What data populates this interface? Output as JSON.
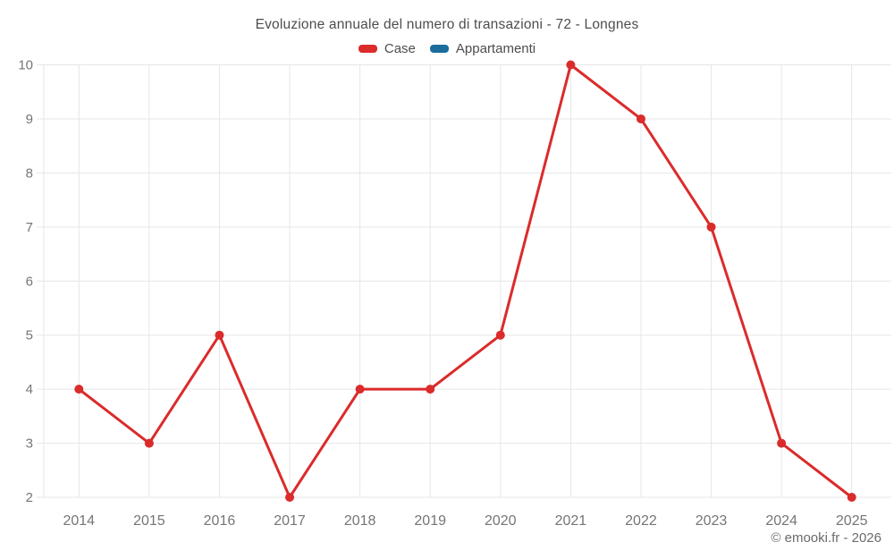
{
  "chart_data": {
    "type": "line",
    "title": "Evoluzione annuale del numero di transazioni - 72 - Longnes",
    "categories": [
      "2014",
      "2015",
      "2016",
      "2017",
      "2018",
      "2019",
      "2020",
      "2021",
      "2022",
      "2023",
      "2024",
      "2025"
    ],
    "series": [
      {
        "name": "Case",
        "color": "#db2b2b",
        "values": [
          4,
          3,
          5,
          2,
          4,
          4,
          5,
          10,
          9,
          7,
          3,
          2
        ]
      },
      {
        "name": "Appartamenti",
        "color": "#1b6d9d",
        "values": []
      }
    ],
    "xlabel": "",
    "ylabel": "",
    "ylim": [
      2,
      10
    ],
    "yticks": [
      2,
      3,
      4,
      5,
      6,
      7,
      8,
      9,
      10
    ],
    "grid": true,
    "legend_position": "top"
  },
  "footer": {
    "credit": "© emooki.fr - 2026"
  },
  "colors": {
    "background": "#ffffff",
    "grid": "#e6e6e6",
    "axis_text": "#757575",
    "title_text": "#4d4d4d",
    "footer_text": "#6b6b6b",
    "case_red": "#db2b2b",
    "appartamenti_blue": "#1b6d9d"
  }
}
